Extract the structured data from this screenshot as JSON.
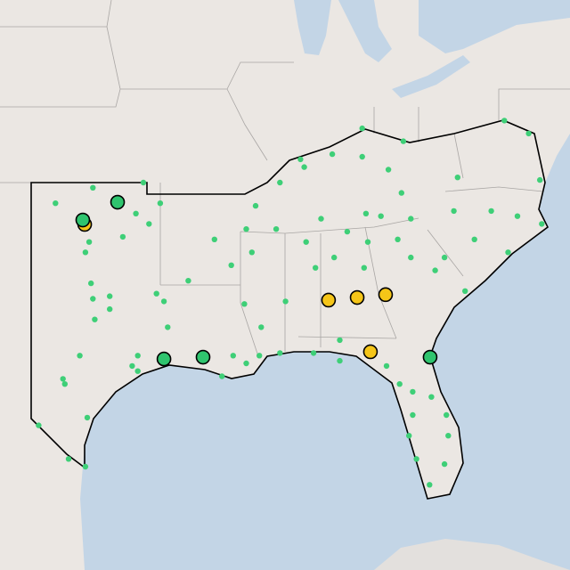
{
  "layers": [
    {
      "color": "#3ecf77",
      "points": [
        [
          -101.7,
          36.2
        ],
        [
          -99.7,
          36.8
        ],
        [
          -97.0,
          37.0
        ],
        [
          -96.1,
          36.2
        ],
        [
          -96.7,
          35.4
        ],
        [
          -97.4,
          35.8
        ],
        [
          -99.9,
          34.7
        ],
        [
          -100.1,
          34.3
        ],
        [
          -98.1,
          34.9
        ],
        [
          -93.2,
          34.8
        ],
        [
          -99.8,
          33.1
        ],
        [
          -98.8,
          32.6
        ],
        [
          -99.7,
          32.5
        ],
        [
          -98.8,
          32.1
        ],
        [
          -99.6,
          31.7
        ],
        [
          -96.3,
          32.7
        ],
        [
          -95.9,
          32.4
        ],
        [
          -94.6,
          33.2
        ],
        [
          -95.7,
          31.4
        ],
        [
          -97.3,
          30.3
        ],
        [
          -97.6,
          29.9
        ],
        [
          -97.3,
          29.7
        ],
        [
          -100.4,
          30.3
        ],
        [
          -101.3,
          29.4
        ],
        [
          -101.2,
          29.2
        ],
        [
          -100.0,
          27.9
        ],
        [
          -102.6,
          27.6
        ],
        [
          -101.0,
          26.3
        ],
        [
          -100.1,
          26.0
        ],
        [
          -92.8,
          29.5
        ],
        [
          -92.2,
          30.3
        ],
        [
          -91.5,
          30.0
        ],
        [
          -90.8,
          30.3
        ],
        [
          -89.7,
          30.4
        ],
        [
          -87.9,
          30.4
        ],
        [
          -86.5,
          30.1
        ],
        [
          -86.5,
          30.9
        ],
        [
          -91.6,
          32.3
        ],
        [
          -90.7,
          31.4
        ],
        [
          -89.4,
          32.4
        ],
        [
          -92.3,
          33.8
        ],
        [
          -91.5,
          35.2
        ],
        [
          -91.2,
          34.3
        ],
        [
          -89.9,
          35.2
        ],
        [
          -88.3,
          34.7
        ],
        [
          -87.5,
          35.6
        ],
        [
          -86.1,
          35.1
        ],
        [
          -87.8,
          33.7
        ],
        [
          -86.8,
          34.1
        ],
        [
          -85.2,
          33.7
        ],
        [
          -85.0,
          34.7
        ],
        [
          -83.4,
          34.8
        ],
        [
          -82.7,
          34.1
        ],
        [
          -81.4,
          33.6
        ],
        [
          -79.8,
          32.8
        ],
        [
          -80.9,
          34.1
        ],
        [
          -79.3,
          34.8
        ],
        [
          -77.5,
          34.3
        ],
        [
          -78.4,
          35.9
        ],
        [
          -77.0,
          35.7
        ],
        [
          -75.7,
          35.4
        ],
        [
          -75.8,
          37.1
        ],
        [
          -77.7,
          39.4
        ],
        [
          -76.4,
          38.9
        ],
        [
          -80.4,
          35.9
        ],
        [
          -80.2,
          37.2
        ],
        [
          -83.2,
          36.6
        ],
        [
          -85.1,
          35.8
        ],
        [
          -84.3,
          35.7
        ],
        [
          -82.7,
          35.6
        ],
        [
          -83.9,
          37.5
        ],
        [
          -85.3,
          38.0
        ],
        [
          -86.9,
          38.1
        ],
        [
          -88.4,
          37.6
        ],
        [
          -89.7,
          37.0
        ],
        [
          -91.0,
          36.1
        ],
        [
          -88.6,
          37.9
        ],
        [
          -85.3,
          39.1
        ],
        [
          -83.1,
          38.6
        ],
        [
          -82.6,
          28.9
        ],
        [
          -81.6,
          28.7
        ],
        [
          -80.8,
          28.0
        ],
        [
          -82.6,
          28.0
        ],
        [
          -82.8,
          27.2
        ],
        [
          -80.7,
          27.2
        ],
        [
          -80.9,
          26.1
        ],
        [
          -82.4,
          26.3
        ],
        [
          -81.7,
          25.3
        ],
        [
          -83.3,
          29.2
        ],
        [
          -84.0,
          29.9
        ]
      ]
    },
    {
      "color": "#f5c518",
      "points": [
        [
          -100.14,
          35.38
        ],
        [
          -87.1,
          32.45
        ],
        [
          -85.57,
          32.55
        ],
        [
          -84.05,
          32.66
        ],
        [
          -84.86,
          30.45
        ]
      ]
    },
    {
      "color": "#2fc46e",
      "points": [
        [
          -100.24,
          35.55
        ],
        [
          -98.38,
          36.24
        ],
        [
          -95.9,
          30.17
        ],
        [
          -93.81,
          30.24
        ],
        [
          -81.67,
          30.24
        ]
      ]
    }
  ]
}
